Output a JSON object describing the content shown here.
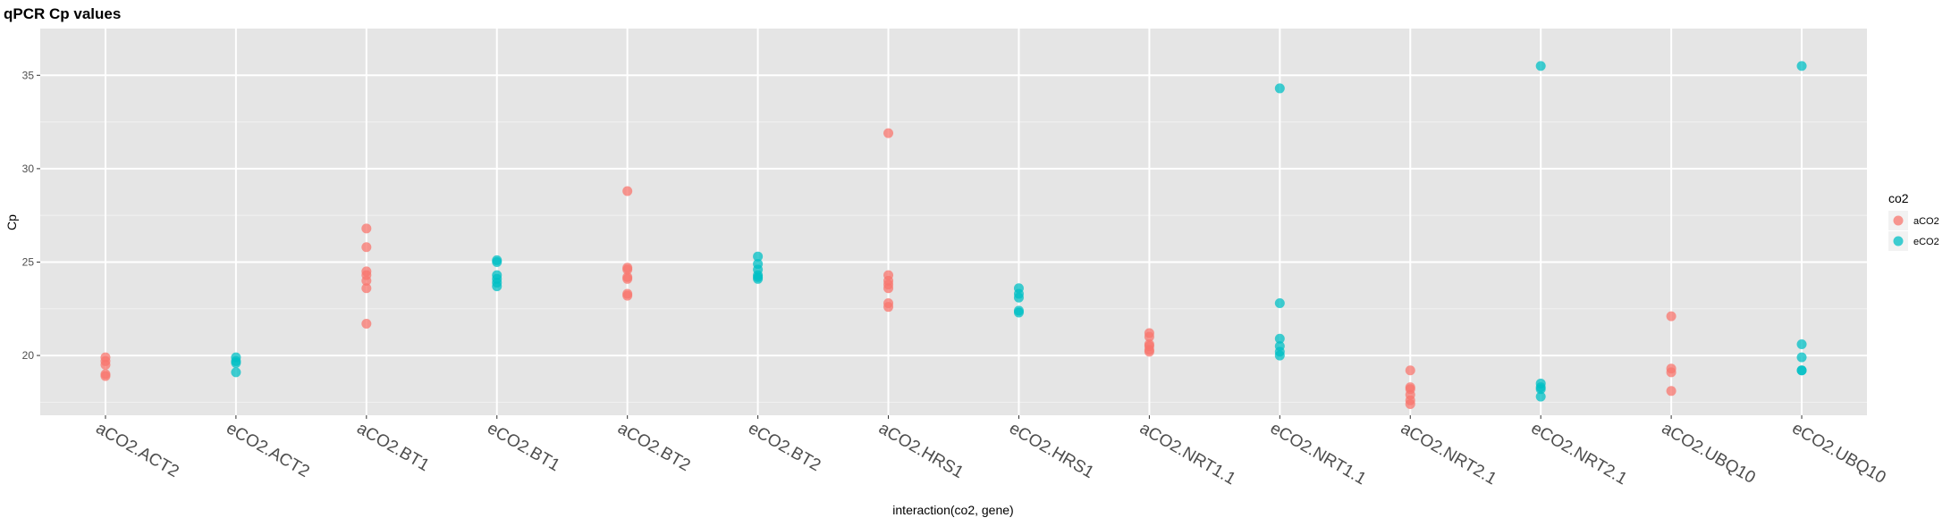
{
  "chart_data": {
    "type": "scatter",
    "title": "qPCR Cp values",
    "xlabel": "interaction(co2, gene)",
    "ylabel": "Cp",
    "ylim": [
      16.8,
      37.5
    ],
    "yticks": [
      20,
      25,
      30,
      35
    ],
    "grid": true,
    "legend_position": "right",
    "legend_title": "co2",
    "categories": [
      "aCO2.ACT2",
      "eCO2.ACT2",
      "aCO2.BT1",
      "eCO2.BT1",
      "aCO2.BT2",
      "eCO2.BT2",
      "aCO2.HRS1",
      "eCO2.HRS1",
      "aCO2.NRT1.1",
      "eCO2.NRT1.1",
      "aCO2.NRT2.1",
      "eCO2.NRT2.1",
      "aCO2.UBQ10",
      "eCO2.UBQ10"
    ],
    "series": [
      {
        "name": "aCO2",
        "color": "#F8766D",
        "points": [
          {
            "x": "aCO2.ACT2",
            "y": 19.9
          },
          {
            "x": "aCO2.ACT2",
            "y": 19.7
          },
          {
            "x": "aCO2.ACT2",
            "y": 19.5
          },
          {
            "x": "aCO2.ACT2",
            "y": 19.0
          },
          {
            "x": "aCO2.ACT2",
            "y": 18.9
          },
          {
            "x": "aCO2.BT1",
            "y": 26.8
          },
          {
            "x": "aCO2.BT1",
            "y": 25.8
          },
          {
            "x": "aCO2.BT1",
            "y": 24.5
          },
          {
            "x": "aCO2.BT1",
            "y": 24.3
          },
          {
            "x": "aCO2.BT1",
            "y": 24.0
          },
          {
            "x": "aCO2.BT1",
            "y": 23.6
          },
          {
            "x": "aCO2.BT1",
            "y": 21.7
          },
          {
            "x": "aCO2.BT2",
            "y": 28.8
          },
          {
            "x": "aCO2.BT2",
            "y": 24.7
          },
          {
            "x": "aCO2.BT2",
            "y": 24.6
          },
          {
            "x": "aCO2.BT2",
            "y": 24.2
          },
          {
            "x": "aCO2.BT2",
            "y": 24.1
          },
          {
            "x": "aCO2.BT2",
            "y": 23.3
          },
          {
            "x": "aCO2.BT2",
            "y": 23.2
          },
          {
            "x": "aCO2.HRS1",
            "y": 31.9
          },
          {
            "x": "aCO2.HRS1",
            "y": 24.3
          },
          {
            "x": "aCO2.HRS1",
            "y": 24.0
          },
          {
            "x": "aCO2.HRS1",
            "y": 23.8
          },
          {
            "x": "aCO2.HRS1",
            "y": 23.6
          },
          {
            "x": "aCO2.HRS1",
            "y": 22.8
          },
          {
            "x": "aCO2.HRS1",
            "y": 22.6
          },
          {
            "x": "aCO2.NRT1.1",
            "y": 21.2
          },
          {
            "x": "aCO2.NRT1.1",
            "y": 21.0
          },
          {
            "x": "aCO2.NRT1.1",
            "y": 20.6
          },
          {
            "x": "aCO2.NRT1.1",
            "y": 20.5
          },
          {
            "x": "aCO2.NRT1.1",
            "y": 20.3
          },
          {
            "x": "aCO2.NRT1.1",
            "y": 20.2
          },
          {
            "x": "aCO2.NRT2.1",
            "y": 19.2
          },
          {
            "x": "aCO2.NRT2.1",
            "y": 18.3
          },
          {
            "x": "aCO2.NRT2.1",
            "y": 18.2
          },
          {
            "x": "aCO2.NRT2.1",
            "y": 17.9
          },
          {
            "x": "aCO2.NRT2.1",
            "y": 17.6
          },
          {
            "x": "aCO2.NRT2.1",
            "y": 17.4
          },
          {
            "x": "aCO2.UBQ10",
            "y": 22.1
          },
          {
            "x": "aCO2.UBQ10",
            "y": 19.3
          },
          {
            "x": "aCO2.UBQ10",
            "y": 19.1
          },
          {
            "x": "aCO2.UBQ10",
            "y": 18.1
          }
        ]
      },
      {
        "name": "eCO2",
        "color": "#00BFC4",
        "points": [
          {
            "x": "eCO2.ACT2",
            "y": 19.9
          },
          {
            "x": "eCO2.ACT2",
            "y": 19.7
          },
          {
            "x": "eCO2.ACT2",
            "y": 19.6
          },
          {
            "x": "eCO2.ACT2",
            "y": 19.1
          },
          {
            "x": "eCO2.BT1",
            "y": 25.1
          },
          {
            "x": "eCO2.BT1",
            "y": 25.0
          },
          {
            "x": "eCO2.BT1",
            "y": 24.3
          },
          {
            "x": "eCO2.BT1",
            "y": 24.1
          },
          {
            "x": "eCO2.BT1",
            "y": 23.9
          },
          {
            "x": "eCO2.BT1",
            "y": 23.7
          },
          {
            "x": "eCO2.BT2",
            "y": 25.3
          },
          {
            "x": "eCO2.BT2",
            "y": 24.9
          },
          {
            "x": "eCO2.BT2",
            "y": 24.6
          },
          {
            "x": "eCO2.BT2",
            "y": 24.3
          },
          {
            "x": "eCO2.BT2",
            "y": 24.2
          },
          {
            "x": "eCO2.BT2",
            "y": 24.1
          },
          {
            "x": "eCO2.HRS1",
            "y": 23.6
          },
          {
            "x": "eCO2.HRS1",
            "y": 23.3
          },
          {
            "x": "eCO2.HRS1",
            "y": 23.1
          },
          {
            "x": "eCO2.HRS1",
            "y": 22.4
          },
          {
            "x": "eCO2.HRS1",
            "y": 22.3
          },
          {
            "x": "eCO2.NRT1.1",
            "y": 34.3
          },
          {
            "x": "eCO2.NRT1.1",
            "y": 22.8
          },
          {
            "x": "eCO2.NRT1.1",
            "y": 20.9
          },
          {
            "x": "eCO2.NRT1.1",
            "y": 20.5
          },
          {
            "x": "eCO2.NRT1.1",
            "y": 20.2
          },
          {
            "x": "eCO2.NRT1.1",
            "y": 20.0
          },
          {
            "x": "eCO2.NRT2.1",
            "y": 35.5
          },
          {
            "x": "eCO2.NRT2.1",
            "y": 18.5
          },
          {
            "x": "eCO2.NRT2.1",
            "y": 18.3
          },
          {
            "x": "eCO2.NRT2.1",
            "y": 18.2
          },
          {
            "x": "eCO2.NRT2.1",
            "y": 17.8
          },
          {
            "x": "eCO2.UBQ10",
            "y": 35.5
          },
          {
            "x": "eCO2.UBQ10",
            "y": 20.6
          },
          {
            "x": "eCO2.UBQ10",
            "y": 19.9
          },
          {
            "x": "eCO2.UBQ10",
            "y": 19.2
          },
          {
            "x": "eCO2.UBQ10",
            "y": 19.2
          }
        ]
      }
    ]
  }
}
